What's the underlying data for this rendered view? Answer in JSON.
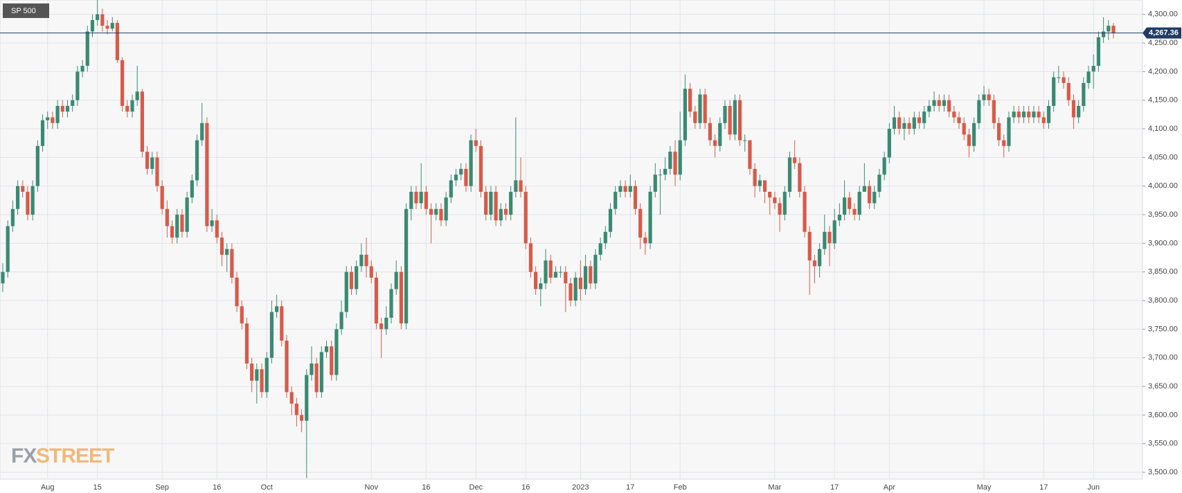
{
  "chart_data": {
    "type": "candlestick",
    "title": "SP 500",
    "watermark": {
      "prefix": "FX",
      "name": "STREET"
    },
    "up_color": "#3a8a72",
    "down_color": "#d85a49",
    "grid": true,
    "ylim": [
      3488,
      4325
    ],
    "yticks": [
      {
        "value": 3500,
        "label": "3,500.00"
      },
      {
        "value": 3550,
        "label": "3,550.00"
      },
      {
        "value": 3600,
        "label": "3,600.00"
      },
      {
        "value": 3650,
        "label": "3,650.00"
      },
      {
        "value": 3700,
        "label": "3,700.00"
      },
      {
        "value": 3750,
        "label": "3,750.00"
      },
      {
        "value": 3800,
        "label": "3,800.00"
      },
      {
        "value": 3850,
        "label": "3,850.00"
      },
      {
        "value": 3900,
        "label": "3,900.00"
      },
      {
        "value": 3950,
        "label": "3,950.00"
      },
      {
        "value": 4000,
        "label": "4,000.00"
      },
      {
        "value": 4050,
        "label": "4,050.00"
      },
      {
        "value": 4100,
        "label": "4,100.00"
      },
      {
        "value": 4150,
        "label": "4,150.00"
      },
      {
        "value": 4200,
        "label": "4,200.00"
      },
      {
        "value": 4250,
        "label": "4,250.00"
      },
      {
        "value": 4300,
        "label": "4,300.00"
      }
    ],
    "last_price": {
      "value": 4267.36,
      "label": "4,267.36"
    },
    "categories": [
      null,
      null,
      null,
      null,
      null,
      null,
      null,
      null,
      null,
      "Aug",
      null,
      null,
      null,
      null,
      null,
      null,
      null,
      null,
      null,
      "15",
      null,
      null,
      null,
      null,
      null,
      null,
      null,
      null,
      null,
      null,
      null,
      null,
      "Sep",
      null,
      null,
      null,
      null,
      null,
      null,
      null,
      null,
      null,
      null,
      "16",
      null,
      null,
      null,
      null,
      null,
      null,
      null,
      null,
      null,
      "Oct",
      null,
      null,
      null,
      null,
      null,
      null,
      null,
      null,
      null,
      null,
      null,
      null,
      null,
      null,
      null,
      null,
      null,
      null,
      null,
      null,
      "Nov",
      null,
      null,
      null,
      null,
      null,
      null,
      null,
      null,
      null,
      null,
      "16",
      null,
      null,
      null,
      null,
      null,
      null,
      null,
      null,
      null,
      "Dec",
      null,
      null,
      null,
      null,
      null,
      null,
      null,
      null,
      null,
      "16",
      null,
      null,
      null,
      null,
      null,
      null,
      null,
      null,
      null,
      null,
      "2023",
      null,
      null,
      null,
      null,
      null,
      null,
      null,
      null,
      null,
      "17",
      null,
      null,
      null,
      null,
      null,
      null,
      null,
      null,
      null,
      "Feb",
      null,
      null,
      null,
      null,
      null,
      null,
      null,
      null,
      null,
      null,
      null,
      null,
      null,
      null,
      null,
      null,
      null,
      null,
      "Mar",
      null,
      null,
      null,
      null,
      null,
      null,
      null,
      null,
      null,
      null,
      null,
      "17",
      null,
      null,
      null,
      null,
      null,
      null,
      null,
      null,
      null,
      null,
      "Apr",
      null,
      null,
      null,
      null,
      null,
      null,
      null,
      null,
      null,
      null,
      null,
      null,
      null,
      null,
      null,
      null,
      null,
      null,
      "May",
      null,
      null,
      null,
      null,
      null,
      null,
      null,
      null,
      null,
      null,
      null,
      "17",
      null,
      null,
      null,
      null,
      null,
      null,
      null,
      null,
      null,
      "Jun",
      null,
      null,
      null,
      null
    ],
    "open": [
      3830,
      3850,
      3930,
      3960,
      4000,
      3990,
      3950,
      4000,
      4070,
      4115,
      4120,
      4110,
      4140,
      4130,
      4140,
      4150,
      4200,
      4210,
      4270,
      4290,
      4300,
      4280,
      4275,
      4285,
      4220,
      4140,
      4130,
      4150,
      4165,
      4060,
      4030,
      4050,
      4000,
      3960,
      3930,
      3910,
      3950,
      3920,
      3980,
      4010,
      4080,
      4110,
      3930,
      3940,
      3910,
      3880,
      3890,
      3840,
      3790,
      3760,
      3690,
      3660,
      3680,
      3640,
      3700,
      3780,
      3790,
      3730,
      3640,
      3620,
      3600,
      3590,
      3670,
      3690,
      3640,
      3710,
      3720,
      3670,
      3750,
      3780,
      3850,
      3820,
      3860,
      3880,
      3860,
      3840,
      3760,
      3750,
      3770,
      3820,
      3850,
      3760,
      3960,
      3990,
      3970,
      3990,
      3960,
      3950,
      3960,
      3940,
      3980,
      4010,
      4020,
      4030,
      4000,
      4080,
      4070,
      3990,
      3950,
      3990,
      3940,
      3960,
      3950,
      3990,
      4010,
      3990,
      3900,
      3850,
      3820,
      3830,
      3870,
      3840,
      3850,
      3850,
      3830,
      3800,
      3840,
      3820,
      3860,
      3830,
      3880,
      3900,
      3920,
      3960,
      3990,
      4000,
      3990,
      4000,
      3960,
      3910,
      3900,
      3990,
      4020,
      4020,
      4030,
      4060,
      4020,
      4080,
      4170,
      4130,
      4110,
      4160,
      4110,
      4080,
      4070,
      4110,
      4140,
      4090,
      4150,
      4080,
      4080,
      4030,
      4000,
      4010,
      3990,
      3980,
      3970,
      3950,
      3990,
      4050,
      4040,
      3990,
      3920,
      3870,
      3860,
      3890,
      3920,
      3900,
      3940,
      3950,
      3980,
      3960,
      3950,
      3990,
      4000,
      3970,
      3990,
      4020,
      4050,
      4100,
      4120,
      4100,
      4110,
      4100,
      4120,
      4110,
      4130,
      4140,
      4150,
      4140,
      4150,
      4130,
      4120,
      4110,
      4090,
      4070,
      4110,
      4150,
      4160,
      4150,
      4110,
      4080,
      4070,
      4120,
      4130,
      4120,
      4130,
      4120,
      4130,
      4120,
      4110,
      4140,
      4190,
      4190,
      4180,
      4150,
      4120,
      4140,
      4180,
      4200,
      4210,
      4260,
      4270,
      4280
    ],
    "high": [
      3865,
      3940,
      3975,
      4010,
      4010,
      4000,
      4010,
      4080,
      4125,
      4130,
      4130,
      4150,
      4150,
      4150,
      4160,
      4210,
      4220,
      4280,
      4300,
      4325,
      4310,
      4290,
      4295,
      4290,
      4225,
      4150,
      4160,
      4210,
      4170,
      4070,
      4060,
      4060,
      4010,
      3975,
      3940,
      3960,
      3960,
      3990,
      4020,
      4090,
      4145,
      4120,
      3960,
      3950,
      3920,
      3900,
      3900,
      3850,
      3800,
      3770,
      3700,
      3690,
      3690,
      3710,
      3800,
      3810,
      3800,
      3740,
      3650,
      3630,
      3610,
      3680,
      3720,
      3700,
      3720,
      3730,
      3730,
      3760,
      3800,
      3860,
      3860,
      3870,
      3900,
      3910,
      3870,
      3850,
      3770,
      3790,
      3830,
      3870,
      3860,
      3970,
      4000,
      4000,
      4040,
      4000,
      3970,
      3970,
      3970,
      3990,
      4020,
      4030,
      4040,
      4040,
      4090,
      4100,
      4080,
      4000,
      4000,
      4000,
      3970,
      3970,
      4000,
      4120,
      4050,
      4000,
      3910,
      3860,
      3840,
      3890,
      3880,
      3860,
      3860,
      3860,
      3840,
      3850,
      3870,
      3880,
      3870,
      3890,
      3910,
      3930,
      3970,
      4000,
      4010,
      4010,
      4020,
      4010,
      3970,
      3920,
      4000,
      4040,
      4030,
      4050,
      4070,
      4080,
      4130,
      4195,
      4180,
      4140,
      4170,
      4170,
      4120,
      4090,
      4120,
      4150,
      4150,
      4160,
      4160,
      4090,
      4080,
      4040,
      4020,
      4010,
      3990,
      3990,
      3980,
      4000,
      4060,
      4080,
      4050,
      4000,
      3930,
      3880,
      3900,
      3950,
      3930,
      3960,
      3970,
      4010,
      3990,
      3970,
      4000,
      4040,
      4010,
      4000,
      4030,
      4060,
      4110,
      4140,
      4130,
      4120,
      4120,
      4130,
      4130,
      4140,
      4150,
      4165,
      4160,
      4160,
      4160,
      4140,
      4130,
      4120,
      4100,
      4120,
      4160,
      4175,
      4170,
      4160,
      4120,
      4090,
      4130,
      4140,
      4140,
      4140,
      4140,
      4140,
      4140,
      4130,
      4150,
      4200,
      4210,
      4200,
      4190,
      4160,
      4150,
      4190,
      4210,
      4230,
      4270,
      4295,
      4290,
      4285
    ],
    "low": [
      3815,
      3840,
      3920,
      3950,
      3980,
      3940,
      3940,
      3990,
      4060,
      4100,
      4100,
      4100,
      4120,
      4120,
      4130,
      4140,
      4190,
      4200,
      4260,
      4280,
      4270,
      4265,
      4270,
      4215,
      4130,
      4120,
      4120,
      4140,
      4050,
      4020,
      4020,
      3990,
      3950,
      3910,
      3900,
      3900,
      3910,
      3910,
      3970,
      4000,
      4070,
      3920,
      3920,
      3900,
      3860,
      3850,
      3830,
      3780,
      3750,
      3680,
      3640,
      3620,
      3630,
      3630,
      3690,
      3770,
      3720,
      3630,
      3600,
      3580,
      3570,
      3490,
      3660,
      3630,
      3630,
      3700,
      3660,
      3660,
      3740,
      3770,
      3810,
      3810,
      3850,
      3840,
      3830,
      3750,
      3700,
      3740,
      3760,
      3810,
      3750,
      3750,
      3940,
      3960,
      3960,
      3950,
      3900,
      3940,
      3930,
      3930,
      3970,
      4000,
      4010,
      3990,
      3990,
      4060,
      3980,
      3940,
      3940,
      3930,
      3930,
      3940,
      3940,
      3980,
      3980,
      3890,
      3840,
      3810,
      3790,
      3820,
      3830,
      3840,
      3840,
      3780,
      3790,
      3790,
      3800,
      3810,
      3820,
      3820,
      3870,
      3890,
      3910,
      3950,
      3980,
      3980,
      3980,
      3950,
      3890,
      3880,
      3890,
      3980,
      3950,
      4010,
      4020,
      4000,
      4010,
      4070,
      4120,
      4100,
      4100,
      4100,
      4070,
      4050,
      4060,
      4100,
      4080,
      4080,
      4070,
      4060,
      4020,
      3980,
      3990,
      3970,
      3950,
      3960,
      3920,
      3940,
      3980,
      4030,
      3980,
      3910,
      3810,
      3830,
      3840,
      3880,
      3860,
      3890,
      3930,
      3940,
      3950,
      3940,
      3940,
      3990,
      3960,
      3960,
      3980,
      4010,
      4040,
      4090,
      4090,
      4080,
      4090,
      4090,
      4100,
      4100,
      4120,
      4130,
      4130,
      4130,
      4120,
      4110,
      4100,
      4080,
      4050,
      4060,
      4100,
      4140,
      4140,
      4100,
      4070,
      4050,
      4060,
      4110,
      4110,
      4110,
      4110,
      4110,
      4110,
      4100,
      4100,
      4130,
      4180,
      4170,
      4140,
      4100,
      4110,
      4130,
      4170,
      4170,
      4200,
      4250,
      4255,
      4258
    ],
    "close": [
      3850,
      3930,
      3960,
      4000,
      3990,
      3950,
      4000,
      4070,
      4115,
      4120,
      4110,
      4140,
      4130,
      4140,
      4150,
      4200,
      4210,
      4270,
      4290,
      4300,
      4280,
      4275,
      4285,
      4220,
      4140,
      4130,
      4150,
      4165,
      4060,
      4030,
      4050,
      4000,
      3960,
      3930,
      3910,
      3950,
      3920,
      3980,
      4010,
      4080,
      4110,
      3930,
      3940,
      3910,
      3880,
      3890,
      3840,
      3790,
      3760,
      3690,
      3660,
      3680,
      3640,
      3700,
      3780,
      3790,
      3730,
      3640,
      3620,
      3600,
      3590,
      3670,
      3690,
      3640,
      3710,
      3720,
      3670,
      3750,
      3780,
      3850,
      3820,
      3860,
      3880,
      3860,
      3840,
      3760,
      3750,
      3770,
      3820,
      3850,
      3760,
      3960,
      3990,
      3970,
      3990,
      3960,
      3950,
      3960,
      3940,
      3980,
      4010,
      4020,
      4030,
      4000,
      4080,
      4070,
      3990,
      3950,
      3990,
      3940,
      3960,
      3950,
      3990,
      4010,
      3990,
      3900,
      3850,
      3820,
      3830,
      3870,
      3840,
      3850,
      3850,
      3830,
      3800,
      3840,
      3820,
      3860,
      3830,
      3880,
      3900,
      3920,
      3960,
      3990,
      4000,
      3990,
      4000,
      3960,
      3910,
      3900,
      3990,
      4020,
      4020,
      4030,
      4060,
      4020,
      4080,
      4170,
      4130,
      4110,
      4160,
      4110,
      4080,
      4070,
      4110,
      4140,
      4090,
      4150,
      4080,
      4080,
      4030,
      4000,
      4010,
      3990,
      3980,
      3970,
      3950,
      3990,
      4050,
      4040,
      3990,
      3920,
      3870,
      3860,
      3890,
      3920,
      3900,
      3940,
      3950,
      3980,
      3960,
      3950,
      3990,
      4000,
      3970,
      3990,
      4020,
      4050,
      4100,
      4120,
      4100,
      4110,
      4100,
      4120,
      4110,
      4130,
      4140,
      4150,
      4140,
      4150,
      4130,
      4120,
      4110,
      4090,
      4070,
      4110,
      4150,
      4160,
      4150,
      4110,
      4080,
      4070,
      4120,
      4130,
      4120,
      4130,
      4120,
      4130,
      4120,
      4110,
      4140,
      4190,
      4190,
      4180,
      4150,
      4120,
      4140,
      4180,
      4200,
      4210,
      4260,
      4270,
      4280,
      4267.36
    ]
  }
}
